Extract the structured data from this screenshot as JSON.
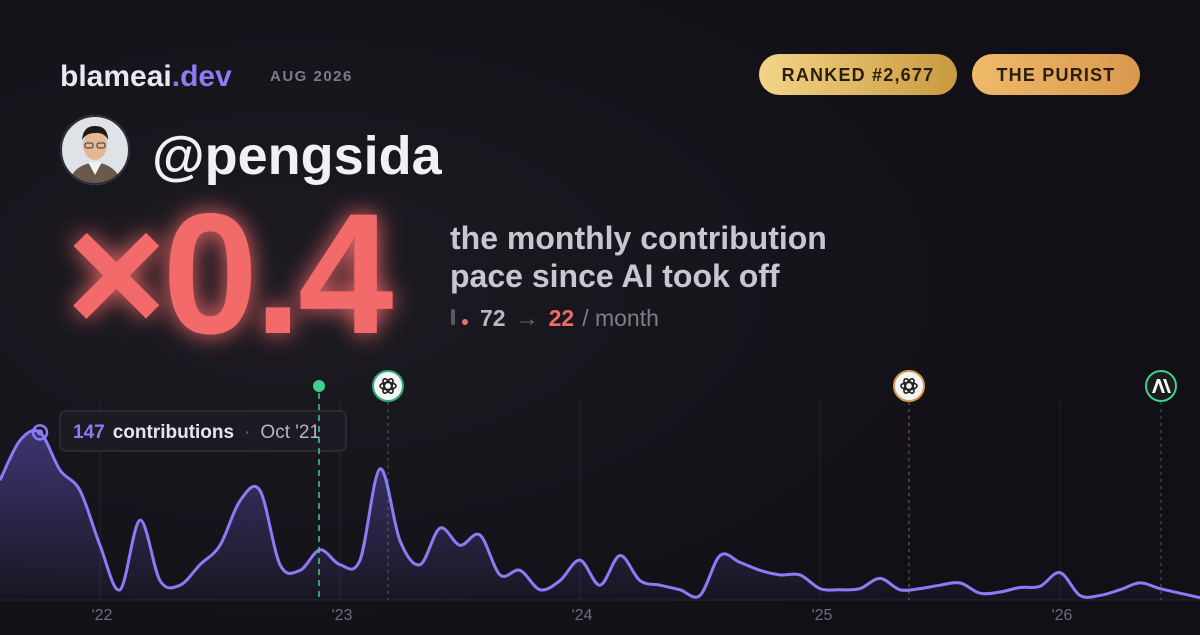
{
  "header": {
    "brand": "blameai",
    "brand_suffix": ".dev",
    "date": "AUG 2026",
    "badges": [
      "RANKED #2,677",
      "THE PURIST"
    ]
  },
  "profile": {
    "handle": "@pengsida"
  },
  "headline": {
    "multiplier": "×0.4",
    "caption_line1": "the monthly contribution",
    "caption_line2": "pace since AI took off",
    "before": 72,
    "arrow": "→",
    "after": 22,
    "unit": "/ month"
  },
  "chart_data": {
    "type": "area",
    "categories": [
      null,
      null,
      null,
      null,
      null,
      "'22",
      null,
      null,
      null,
      null,
      null,
      null,
      null,
      null,
      null,
      null,
      null,
      "'23",
      null,
      null,
      null,
      null,
      null,
      null,
      null,
      null,
      null,
      null,
      null,
      "'24",
      null,
      null,
      null,
      null,
      null,
      null,
      null,
      null,
      null,
      null,
      null,
      "'25",
      null,
      null,
      null,
      null,
      null,
      null,
      null,
      null,
      null,
      null,
      null,
      "'26",
      null,
      null,
      null,
      null,
      null,
      null,
      null
    ],
    "series": [
      {
        "name": "contributions",
        "color": "#8b7cf6",
        "values": [
          105,
          140,
          147,
          114,
          96,
          48,
          9,
          70,
          17,
          13,
          31,
          48,
          87,
          96,
          31,
          26,
          44,
          31,
          35,
          115,
          52,
          31,
          63,
          48,
          57,
          22,
          26,
          9,
          17,
          35,
          13,
          39,
          17,
          13,
          9,
          4,
          39,
          33,
          26,
          22,
          22,
          10,
          9,
          10,
          19,
          9,
          10,
          13,
          15,
          6,
          7,
          11,
          12,
          24,
          4,
          4,
          9,
          15,
          10,
          6,
          2
        ]
      }
    ],
    "ylim": [
      0,
      150
    ],
    "tooltip": {
      "label": "Oct '21"
    }
  }
}
